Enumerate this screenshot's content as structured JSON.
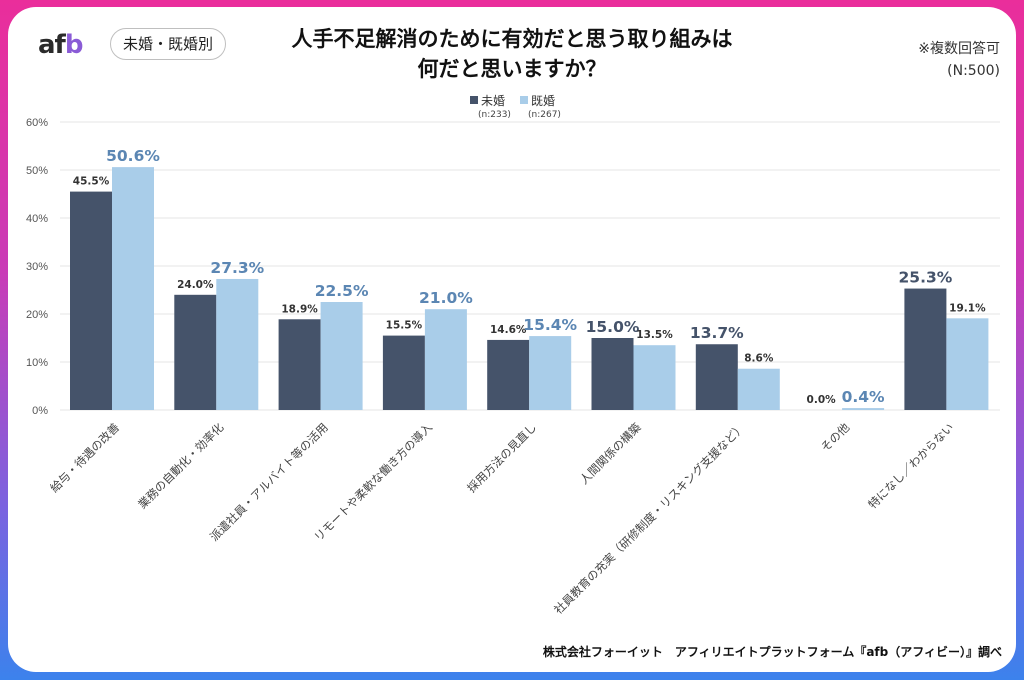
{
  "header": {
    "logo": "afb",
    "tag": "未婚・既婚別",
    "title_line1": "人手不足解消のために有効だと思う取り組みは",
    "title_line2": "何だと思いますか？",
    "note_line1": "※複数回答可",
    "note_line2": "(N:500)"
  },
  "legend": [
    {
      "name": "未婚",
      "n": "(n:233)",
      "color": "#45536a"
    },
    {
      "name": "既婚",
      "n": "(n:267)",
      "color": "#a9cde9"
    }
  ],
  "footer": "株式会社フォーイット　アフィリエイトプラットフォーム『afb（アフィビー）』調べ",
  "colors": {
    "dark_bar": "#45536a",
    "light_bar": "#a9cde9",
    "highlight_light_label": "#5b86b3",
    "grid": "#e6e6e6"
  },
  "chart_data": {
    "type": "bar",
    "title": "人手不足解消のために有効だと思う取り組みは何だと思いますか？",
    "xlabel": "",
    "ylabel": "",
    "ylim": [
      0,
      60
    ],
    "yticks": [
      0,
      10,
      20,
      30,
      40,
      50,
      60
    ],
    "ytick_labels": [
      "0%",
      "10%",
      "20%",
      "30%",
      "40%",
      "50%",
      "60%"
    ],
    "grid": true,
    "legend_position": "top-center",
    "categories": [
      "給与・待遇の改善",
      "業務の自動化・効率化",
      "派遣社員・アルバイト等の活用",
      "リモートや柔軟な働き方の導入",
      "採用方法の見直し",
      "人間関係の構築",
      "社員教育の充実（研修制度・リスキング支援など）",
      "その他",
      "特になし／わからない"
    ],
    "series": [
      {
        "name": "未婚",
        "values": [
          45.5,
          24.0,
          18.9,
          15.5,
          14.6,
          15.0,
          13.7,
          0.0,
          25.3
        ],
        "labels": [
          "45.5%",
          "24.0%",
          "18.9%",
          "15.5%",
          "14.6%",
          "15.0%",
          "13.7%",
          "0.0%",
          "25.3%"
        ]
      },
      {
        "name": "既婚",
        "values": [
          50.6,
          27.3,
          22.5,
          21.0,
          15.4,
          13.5,
          8.6,
          0.4,
          19.1
        ],
        "labels": [
          "50.6%",
          "27.3%",
          "22.5%",
          "21.0%",
          "15.4%",
          "13.5%",
          "8.6%",
          "0.4%",
          "19.1%"
        ]
      }
    ]
  }
}
